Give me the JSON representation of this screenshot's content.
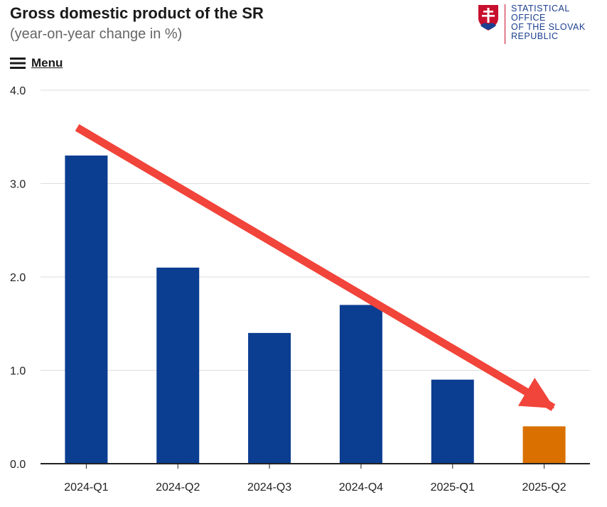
{
  "header": {
    "title": "Gross domestic product of the SR",
    "subtitle": "(year-on-year change in %)",
    "menu_label": "Menu"
  },
  "logo": {
    "lines": [
      "STATISTICAL",
      "OFFICE",
      "OF THE SLOVAK",
      "REPUBLIC"
    ]
  },
  "colors": {
    "bar": "#0b3d91",
    "highlight_bar": "#d97000",
    "arrow": "#f1443a",
    "gridline": "#dddddd",
    "axis": "#222222",
    "logo_text": "#1c3f8f",
    "logo_accent": "#c8102e"
  },
  "chart_data": {
    "type": "bar",
    "title": "Gross domestic product of the SR",
    "subtitle": "(year-on-year change in %)",
    "xlabel": "",
    "ylabel": "",
    "categories": [
      "2024-Q1",
      "2024-Q2",
      "2024-Q3",
      "2024-Q4",
      "2025-Q1",
      "2025-Q2"
    ],
    "values": [
      3.3,
      2.1,
      1.4,
      1.7,
      0.9,
      0.4
    ],
    "highlighted_category": "2025-Q2",
    "ylim": [
      0,
      4
    ],
    "yticks": [
      0,
      1,
      2,
      3,
      4
    ],
    "ytick_labels": [
      "0.0",
      "1.0",
      "2.0",
      "3.0",
      "4.0"
    ],
    "grid": true,
    "legend": "none",
    "annotations": [
      {
        "type": "trend-arrow",
        "from": {
          "x": "2024-Q1",
          "y": 3.6
        },
        "to": {
          "x": "2025-Q2",
          "y": 0.6
        }
      }
    ]
  }
}
